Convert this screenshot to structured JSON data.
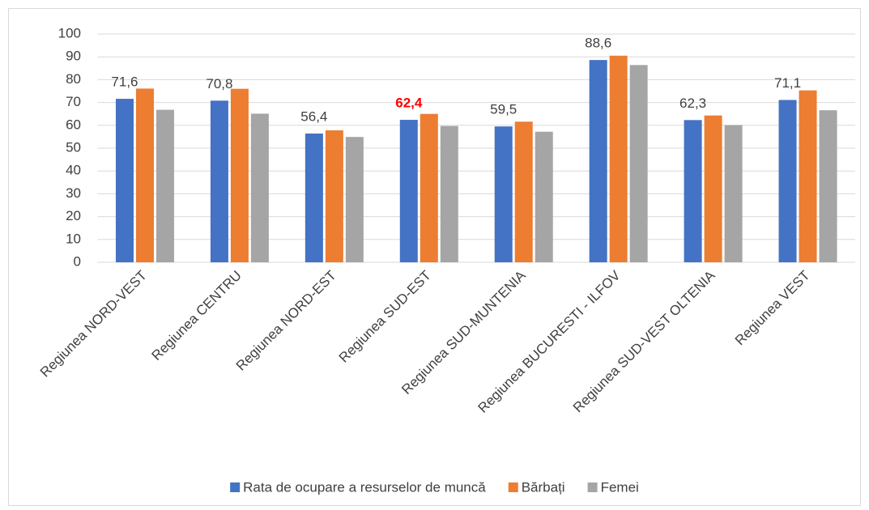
{
  "chart_data": {
    "type": "bar",
    "categories": [
      "Regiunea NORD-VEST",
      "Regiunea CENTRU",
      "Regiunea NORD-EST",
      "Regiunea SUD-EST",
      "Regiunea SUD-MUNTENIA",
      "Regiunea BUCURESTI - ILFOV",
      "Regiunea SUD-VEST OLTENIA",
      "Regiunea VEST"
    ],
    "series": [
      {
        "name": "Rata de ocupare a resurselor de muncă",
        "color": "#4472c4",
        "values": [
          71.6,
          70.8,
          56.4,
          62.4,
          59.5,
          88.6,
          62.3,
          71.1
        ],
        "value_labels": [
          "71,6",
          "70,8",
          "56,4",
          "62,4",
          "59,5",
          "88,6",
          "62,3",
          "71,1"
        ]
      },
      {
        "name": "Bărbați",
        "color": "#ed7d31",
        "values": [
          76.1,
          76.0,
          57.8,
          65.0,
          61.6,
          90.5,
          64.3,
          75.3
        ]
      },
      {
        "name": "Femei",
        "color": "#a5a5a5",
        "values": [
          66.8,
          65.1,
          54.9,
          59.7,
          57.2,
          86.4,
          60.1,
          66.6
        ]
      }
    ],
    "highlight_index": 3,
    "highlight_color": "#ff0000",
    "ylim": [
      0,
      100
    ],
    "yticks": [
      0,
      10,
      20,
      30,
      40,
      50,
      60,
      70,
      80,
      90,
      100
    ],
    "grid": true,
    "legend": "bottom"
  }
}
